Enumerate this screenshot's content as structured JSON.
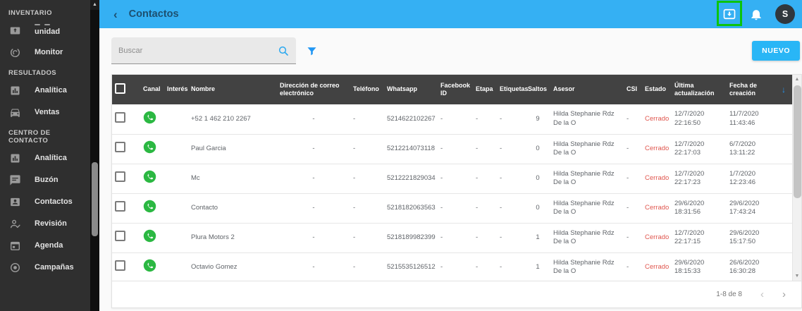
{
  "header": {
    "back_glyph": "‹",
    "title": "Contactos",
    "avatar_initial": "S",
    "highlight_color": "#0cc40c"
  },
  "sidebar": {
    "sections": [
      {
        "title": "INVENTARIO",
        "items": [
          {
            "label": "unidad",
            "icon": "mailbox-icon",
            "clipped": true
          },
          {
            "label": "Monitor",
            "icon": "monitor-icon"
          }
        ]
      },
      {
        "title": "RESULTADOS",
        "items": [
          {
            "label": "Analítica",
            "icon": "analytics-icon"
          },
          {
            "label": "Ventas",
            "icon": "car-icon"
          }
        ]
      },
      {
        "title": "CENTRO DE CONTACTO",
        "items": [
          {
            "label": "Analítica",
            "icon": "analytics-icon"
          },
          {
            "label": "Buzón",
            "icon": "chat-icon"
          },
          {
            "label": "Contactos",
            "icon": "contact-card-icon"
          },
          {
            "label": "Revisión",
            "icon": "person-check-icon"
          },
          {
            "label": "Agenda",
            "icon": "calendar-icon"
          },
          {
            "label": "Campañas",
            "icon": "target-icon"
          }
        ]
      }
    ]
  },
  "toolbar": {
    "search_placeholder": "Buscar",
    "new_button": "NUEVO"
  },
  "table": {
    "columns": [
      "Canal",
      "Interés",
      "Nombre",
      "Dirección de correo electrónico",
      "Teléfono",
      "Whatsapp",
      "Facebook ID",
      "Etapa",
      "Etiquetas",
      "Saltos",
      "Asesor",
      "CSI",
      "Estado",
      "Última actualización",
      "Fecha de creación"
    ],
    "sort_glyph": "↓",
    "estado_color": "#e0564e",
    "whatsapp_green": "#2bb842",
    "rows": [
      {
        "nombre": "+52 1 462 210 2267",
        "email": "-",
        "telefono": "-",
        "whatsapp": "5214622102267",
        "facebook": "-",
        "etapa": "-",
        "etiquetas": "-",
        "saltos": "9",
        "asesor": "Hilda Stephanie Rdz De la O",
        "csi": "-",
        "estado": "Cerrado",
        "actualizacion": "12/7/2020 22:16:50",
        "creacion": "11/7/2020 11:43:46"
      },
      {
        "nombre": "Paul Garcia",
        "email": "-",
        "telefono": "-",
        "whatsapp": "5212214073118",
        "facebook": "-",
        "etapa": "-",
        "etiquetas": "-",
        "saltos": "0",
        "asesor": "Hilda Stephanie Rdz De la O",
        "csi": "-",
        "estado": "Cerrado",
        "actualizacion": "12/7/2020 22:17:03",
        "creacion": "6/7/2020 13:11:22"
      },
      {
        "nombre": "Mc",
        "email": "-",
        "telefono": "-",
        "whatsapp": "5212221829034",
        "facebook": "-",
        "etapa": "-",
        "etiquetas": "-",
        "saltos": "0",
        "asesor": "Hilda Stephanie Rdz De la O",
        "csi": "-",
        "estado": "Cerrado",
        "actualizacion": "12/7/2020 22:17:23",
        "creacion": "1/7/2020 12:23:46"
      },
      {
        "nombre": "Contacto",
        "email": "-",
        "telefono": "-",
        "whatsapp": "5218182063563",
        "facebook": "-",
        "etapa": "-",
        "etiquetas": "-",
        "saltos": "0",
        "asesor": "Hilda Stephanie Rdz De la O",
        "csi": "-",
        "estado": "Cerrado",
        "actualizacion": "29/6/2020 18:31:56",
        "creacion": "29/6/2020 17:43:24"
      },
      {
        "nombre": "Plura Motors 2",
        "email": "-",
        "telefono": "-",
        "whatsapp": "5218189982399",
        "facebook": "-",
        "etapa": "-",
        "etiquetas": "-",
        "saltos": "1",
        "asesor": "Hilda Stephanie Rdz De la O",
        "csi": "-",
        "estado": "Cerrado",
        "actualizacion": "12/7/2020 22:17:15",
        "creacion": "29/6/2020 15:17:50"
      },
      {
        "nombre": "Octavio Gomez",
        "email": "-",
        "telefono": "-",
        "whatsapp": "5215535126512",
        "facebook": "-",
        "etapa": "-",
        "etiquetas": "-",
        "saltos": "1",
        "asesor": "Hilda Stephanie Rdz De la O",
        "csi": "-",
        "estado": "Cerrado",
        "actualizacion": "29/6/2020 18:15:33",
        "creacion": "26/6/2020 16:30:28"
      },
      {
        "partial": true,
        "nombre": "",
        "email": "",
        "telefono": "",
        "whatsapp": "",
        "facebook": "",
        "etapa": "",
        "etiquetas": "",
        "saltos": "",
        "asesor": "",
        "csi": "",
        "estado": "",
        "actualizacion": "",
        "creacion": ""
      }
    ]
  },
  "pagination": {
    "range": "1-8 de 8",
    "prev_glyph": "‹",
    "next_glyph": "›"
  }
}
